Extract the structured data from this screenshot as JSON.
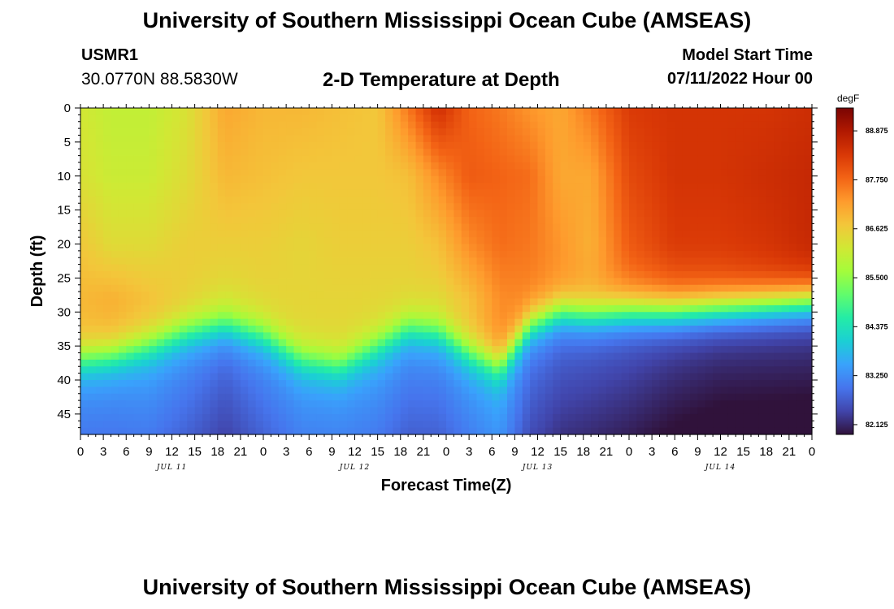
{
  "header": {
    "title": "University of Southern Mississippi Ocean Cube (AMSEAS)",
    "station": "USMR1",
    "coords": "30.0770N  88.5830W",
    "subtitle": "2-D Temperature at Depth",
    "start_label": "Model Start Time",
    "start_value": "07/11/2022 Hour 00"
  },
  "footer": {
    "title": "University of Southern Mississippi Ocean Cube (AMSEAS)"
  },
  "chart_data": {
    "type": "heatmap",
    "title": "2-D Temperature at Depth",
    "xlabel": "Forecast Time(Z)",
    "ylabel": "Depth (ft)",
    "x_hours_range": [
      0,
      96
    ],
    "x_tick_hours": [
      0,
      3,
      6,
      9,
      12,
      15,
      18,
      21,
      24,
      27,
      30,
      33,
      36,
      39,
      42,
      45,
      48,
      51,
      54,
      57,
      60,
      63,
      66,
      69,
      72,
      75,
      78,
      81,
      84,
      87,
      90,
      93,
      96
    ],
    "x_tick_labels": [
      "0",
      "3",
      "6",
      "9",
      "12",
      "15",
      "18",
      "21",
      "0",
      "3",
      "6",
      "9",
      "12",
      "15",
      "18",
      "21",
      "0",
      "3",
      "6",
      "9",
      "12",
      "15",
      "18",
      "21",
      "0",
      "3",
      "6",
      "9",
      "12",
      "15",
      "18",
      "21",
      "0"
    ],
    "day_labels": [
      {
        "label": "JUL 11",
        "hour": 12
      },
      {
        "label": "JUL 12",
        "hour": 36
      },
      {
        "label": "JUL 13",
        "hour": 60
      },
      {
        "label": "JUL 14",
        "hour": 84
      }
    ],
    "y_range_ft": [
      0,
      48
    ],
    "y_ticks": [
      0,
      5,
      10,
      15,
      20,
      25,
      30,
      35,
      40,
      45
    ],
    "colorbar": {
      "unit": "degF",
      "min": 81.9,
      "max": 89.4,
      "labels": [
        "88.875",
        "87.750",
        "86.625",
        "85.500",
        "84.375",
        "83.250",
        "82.125"
      ],
      "label_values": [
        88.875,
        87.75,
        86.625,
        85.5,
        84.375,
        83.25,
        82.125
      ],
      "colors": [
        "#30123b",
        "#4145ab",
        "#4675ed",
        "#39a2fc",
        "#1bcfd4",
        "#24eca6",
        "#61fc6c",
        "#a4fc3b",
        "#d1e834",
        "#f3c63a",
        "#fe9b2d",
        "#f36315",
        "#d93806",
        "#b11901",
        "#7a0403"
      ]
    },
    "profiles": [
      {
        "hour": 0,
        "thermocline_ft": 37.0,
        "cold_temp": 83.3,
        "upper_temps": [
          86.2,
          86.3,
          86.7,
          86.9
        ]
      },
      {
        "hour": 4,
        "thermocline_ft": 36.5,
        "cold_temp": 83.3,
        "upper_temps": [
          86.0,
          86.1,
          86.4,
          87.0
        ]
      },
      {
        "hour": 9,
        "thermocline_ft": 35.0,
        "cold_temp": 83.4,
        "upper_temps": [
          86.0,
          86.1,
          86.4,
          86.8
        ]
      },
      {
        "hour": 14,
        "thermocline_ft": 33.0,
        "cold_temp": 83.2,
        "upper_temps": [
          86.3,
          86.4,
          86.6,
          86.6
        ]
      },
      {
        "hour": 19,
        "thermocline_ft": 32.0,
        "cold_temp": 82.9,
        "upper_temps": [
          87.1,
          86.9,
          86.6,
          86.4
        ]
      },
      {
        "hour": 24,
        "thermocline_ft": 33.5,
        "cold_temp": 83.2,
        "upper_temps": [
          86.9,
          86.8,
          86.6,
          86.5
        ]
      },
      {
        "hour": 29,
        "thermocline_ft": 37.0,
        "cold_temp": 83.4,
        "upper_temps": [
          86.9,
          86.7,
          86.5,
          86.5
        ]
      },
      {
        "hour": 34,
        "thermocline_ft": 38.0,
        "cold_temp": 83.4,
        "upper_temps": [
          86.8,
          86.7,
          86.6,
          86.5
        ]
      },
      {
        "hour": 39,
        "thermocline_ft": 35.0,
        "cold_temp": 83.4,
        "upper_temps": [
          86.7,
          86.7,
          86.6,
          86.5
        ]
      },
      {
        "hour": 43,
        "thermocline_ft": 32.5,
        "cold_temp": 83.2,
        "upper_temps": [
          87.6,
          86.8,
          86.6,
          86.5
        ]
      },
      {
        "hour": 47,
        "thermocline_ft": 33.0,
        "cold_temp": 83.2,
        "upper_temps": [
          88.5,
          87.4,
          86.8,
          86.5
        ]
      },
      {
        "hour": 51,
        "thermocline_ft": 36.0,
        "cold_temp": 83.4,
        "upper_temps": [
          87.8,
          87.9,
          87.4,
          86.8
        ]
      },
      {
        "hour": 55,
        "thermocline_ft": 38.0,
        "cold_temp": 83.6,
        "upper_temps": [
          87.6,
          87.8,
          87.7,
          87.4
        ]
      },
      {
        "hour": 59,
        "thermocline_ft": 32.0,
        "cold_temp": 83.0,
        "upper_temps": [
          87.3,
          87.7,
          87.6,
          87.5
        ]
      },
      {
        "hour": 63,
        "thermocline_ft": 30.0,
        "cold_temp": 82.8,
        "upper_temps": [
          87.1,
          87.1,
          87.3,
          87.4
        ]
      },
      {
        "hour": 67,
        "thermocline_ft": 30.5,
        "cold_temp": 82.7,
        "upper_temps": [
          87.6,
          87.1,
          87.0,
          87.2
        ]
      },
      {
        "hour": 72,
        "thermocline_ft": 30.0,
        "cold_temp": 82.6,
        "upper_temps": [
          88.3,
          88.1,
          87.9,
          87.6
        ]
      },
      {
        "hour": 78,
        "thermocline_ft": 30.0,
        "cold_temp": 82.4,
        "upper_temps": [
          88.4,
          88.4,
          88.3,
          87.9
        ]
      },
      {
        "hour": 84,
        "thermocline_ft": 29.5,
        "cold_temp": 82.3,
        "upper_temps": [
          88.4,
          88.4,
          88.3,
          88.0
        ]
      },
      {
        "hour": 90,
        "thermocline_ft": 29.0,
        "cold_temp": 82.3,
        "upper_temps": [
          88.4,
          88.5,
          88.4,
          88.2
        ]
      },
      {
        "hour": 96,
        "thermocline_ft": 28.5,
        "cold_temp": 82.3,
        "upper_temps": [
          88.5,
          88.6,
          88.6,
          88.4
        ]
      }
    ]
  }
}
